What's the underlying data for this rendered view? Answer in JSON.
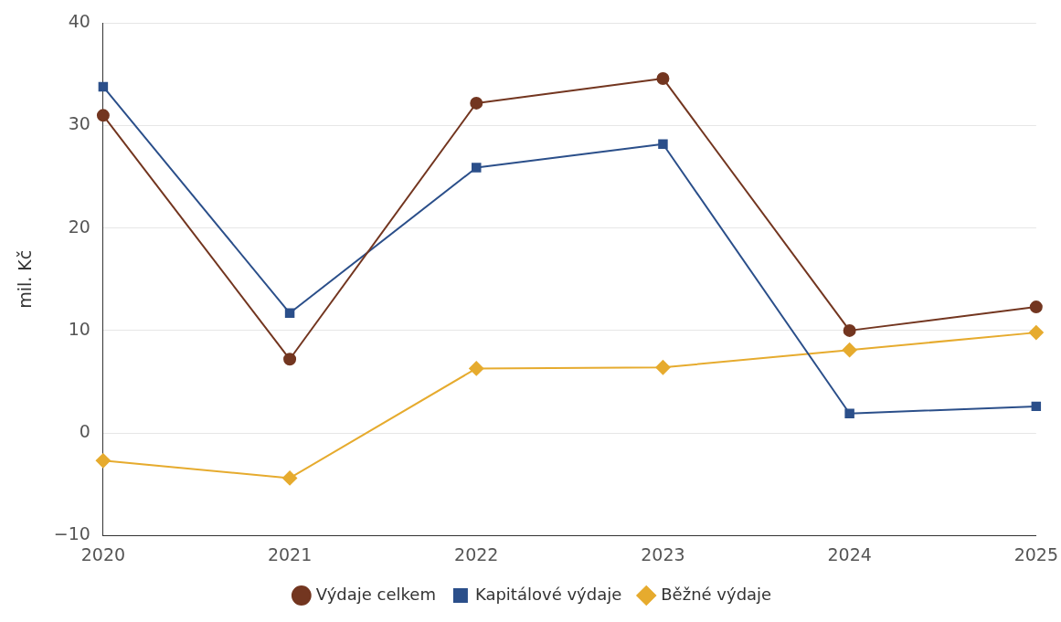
{
  "chart_data": {
    "type": "line",
    "ylabel": "mil. Kč",
    "categories": [
      "2020",
      "2021",
      "2022",
      "2023",
      "2024",
      "2025"
    ],
    "series": [
      {
        "name": "Výdaje celkem",
        "color": "#733620",
        "marker": "circle",
        "values": [
          31.0,
          7.2,
          32.2,
          34.6,
          10.0,
          12.3
        ]
      },
      {
        "name": "Kapitálové výdaje",
        "color": "#2b4f8a",
        "marker": "square",
        "values": [
          33.8,
          11.7,
          25.9,
          28.2,
          1.9,
          2.6
        ]
      },
      {
        "name": "Běžné výdaje",
        "color": "#e6ab2e",
        "marker": "diamond",
        "values": [
          -2.7,
          -4.4,
          6.3,
          6.4,
          8.1,
          9.8
        ]
      }
    ],
    "ylim": [
      -10,
      40
    ],
    "yticks": [
      {
        "value": -10,
        "label": "−10"
      },
      0,
      10,
      20,
      30,
      40
    ],
    "grid": "y",
    "legend": "bottom"
  }
}
